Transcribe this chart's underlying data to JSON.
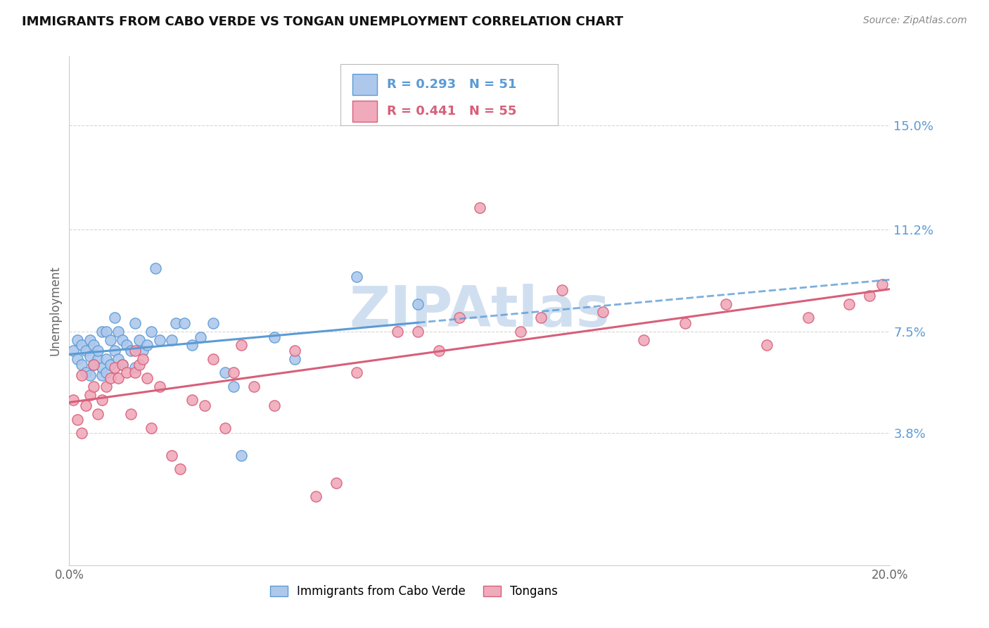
{
  "title": "IMMIGRANTS FROM CABO VERDE VS TONGAN UNEMPLOYMENT CORRELATION CHART",
  "source": "Source: ZipAtlas.com",
  "ylabel": "Unemployment",
  "xlim": [
    0.0,
    0.2
  ],
  "ylim": [
    -0.01,
    0.175
  ],
  "yticks": [
    0.038,
    0.075,
    0.112,
    0.15
  ],
  "ytick_labels": [
    "3.8%",
    "7.5%",
    "11.2%",
    "15.0%"
  ],
  "xticks": [
    0.0,
    0.05,
    0.1,
    0.15,
    0.2
  ],
  "xtick_labels": [
    "0.0%",
    "",
    "",
    "",
    "20.0%"
  ],
  "legend_R1": "0.293",
  "legend_N1": "51",
  "legend_R2": "0.441",
  "legend_N2": "55",
  "legend_label1": "Immigrants from Cabo Verde",
  "legend_label2": "Tongans",
  "watermark": "ZIPAtlas",
  "cabo_verde_x": [
    0.001,
    0.002,
    0.002,
    0.003,
    0.003,
    0.004,
    0.004,
    0.005,
    0.005,
    0.005,
    0.006,
    0.006,
    0.007,
    0.007,
    0.008,
    0.008,
    0.008,
    0.009,
    0.009,
    0.009,
    0.01,
    0.01,
    0.011,
    0.011,
    0.012,
    0.012,
    0.013,
    0.013,
    0.014,
    0.015,
    0.016,
    0.016,
    0.017,
    0.018,
    0.019,
    0.02,
    0.021,
    0.022,
    0.025,
    0.026,
    0.028,
    0.03,
    0.032,
    0.035,
    0.038,
    0.04,
    0.042,
    0.05,
    0.055,
    0.07,
    0.085
  ],
  "cabo_verde_y": [
    0.068,
    0.072,
    0.065,
    0.063,
    0.07,
    0.06,
    0.068,
    0.066,
    0.059,
    0.072,
    0.063,
    0.07,
    0.065,
    0.068,
    0.059,
    0.062,
    0.075,
    0.06,
    0.065,
    0.075,
    0.063,
    0.072,
    0.08,
    0.068,
    0.065,
    0.075,
    0.063,
    0.072,
    0.07,
    0.068,
    0.062,
    0.078,
    0.072,
    0.068,
    0.07,
    0.075,
    0.098,
    0.072,
    0.072,
    0.078,
    0.078,
    0.07,
    0.073,
    0.078,
    0.06,
    0.055,
    0.03,
    0.073,
    0.065,
    0.095,
    0.085
  ],
  "tongan_x": [
    0.001,
    0.002,
    0.003,
    0.003,
    0.004,
    0.005,
    0.006,
    0.006,
    0.007,
    0.008,
    0.009,
    0.01,
    0.011,
    0.012,
    0.013,
    0.014,
    0.015,
    0.016,
    0.016,
    0.017,
    0.018,
    0.019,
    0.02,
    0.022,
    0.025,
    0.027,
    0.03,
    0.033,
    0.035,
    0.038,
    0.04,
    0.042,
    0.045,
    0.05,
    0.055,
    0.06,
    0.065,
    0.07,
    0.08,
    0.085,
    0.09,
    0.095,
    0.1,
    0.11,
    0.115,
    0.12,
    0.13,
    0.14,
    0.15,
    0.16,
    0.17,
    0.18,
    0.19,
    0.195,
    0.198
  ],
  "tongan_y": [
    0.05,
    0.043,
    0.059,
    0.038,
    0.048,
    0.052,
    0.055,
    0.063,
    0.045,
    0.05,
    0.055,
    0.058,
    0.062,
    0.058,
    0.063,
    0.06,
    0.045,
    0.06,
    0.068,
    0.063,
    0.065,
    0.058,
    0.04,
    0.055,
    0.03,
    0.025,
    0.05,
    0.048,
    0.065,
    0.04,
    0.06,
    0.07,
    0.055,
    0.048,
    0.068,
    0.015,
    0.02,
    0.06,
    0.075,
    0.075,
    0.068,
    0.08,
    0.12,
    0.075,
    0.08,
    0.09,
    0.082,
    0.072,
    0.078,
    0.085,
    0.07,
    0.08,
    0.085,
    0.088,
    0.092
  ],
  "cabo_verde_line_color": "#5b9bd5",
  "tongan_line_color": "#d75f7a",
  "cabo_verde_dot_facecolor": "#aec8ec",
  "tongan_dot_facecolor": "#f0aabb",
  "background_color": "#ffffff",
  "grid_color": "#cccccc",
  "title_color": "#111111",
  "right_label_color": "#5b9bd5",
  "watermark_color": "#d0dff0",
  "source_color": "#888888"
}
